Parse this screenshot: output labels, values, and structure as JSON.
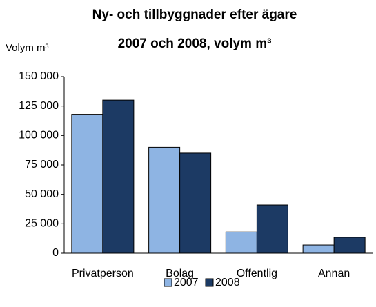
{
  "chart_data": {
    "type": "bar",
    "title": [
      "Ny- och tillbyggnader efter ägare",
      "2007 och 2008, volym m³"
    ],
    "y_label": "Volym m³",
    "categories": [
      "Privatperson",
      "Bolag",
      "Offentlig",
      "Annan"
    ],
    "series": [
      {
        "name": "2007",
        "color": "#8eb4e3",
        "values": [
          118000,
          90000,
          18000,
          7000
        ]
      },
      {
        "name": "2008",
        "color": "#1c3a64",
        "values": [
          130000,
          85000,
          41000,
          13500
        ]
      }
    ],
    "ylim": [
      0,
      150000
    ],
    "yticks": [
      0,
      {
        "value": 25000,
        "label": "25 000"
      },
      {
        "value": 50000,
        "label": "50 000"
      },
      {
        "value": 75000,
        "label": "75 000"
      },
      {
        "value": 100000,
        "label": "100 000"
      },
      {
        "value": 125000,
        "label": "125 000"
      },
      {
        "value": 150000,
        "label": "150 000"
      }
    ],
    "grid": false,
    "legend": "bottom"
  }
}
